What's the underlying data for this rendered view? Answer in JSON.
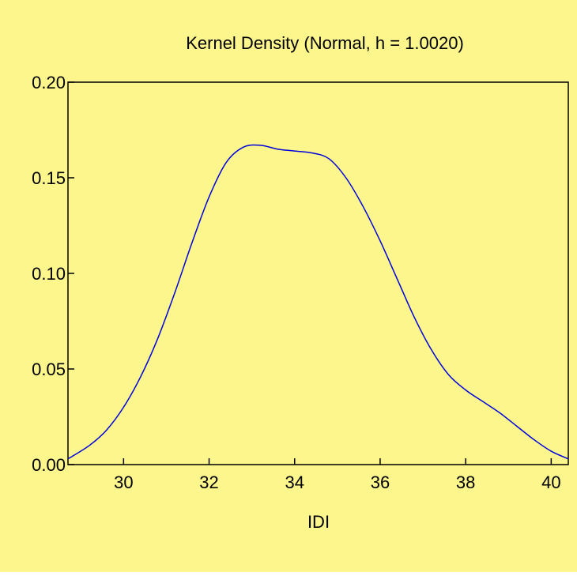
{
  "chart_data": {
    "type": "line",
    "title": "Kernel Density (Normal, h = 1.0020)",
    "xlabel": "IDI",
    "ylabel": "",
    "xlim": [
      28.7,
      40.4
    ],
    "ylim": [
      0,
      0.2
    ],
    "x_ticks": [
      30,
      32,
      34,
      36,
      38,
      40
    ],
    "x_tick_labels": [
      "30",
      "32",
      "34",
      "36",
      "38",
      "40"
    ],
    "y_ticks": [
      0,
      0.05,
      0.1,
      0.15,
      0.2
    ],
    "y_tick_labels": [
      "0.00",
      "0.05",
      "0.10",
      "0.15",
      "0.20"
    ],
    "grid": false,
    "legend": "none",
    "series": [
      {
        "color": "#0000dd",
        "x": [
          28.7,
          29.2,
          29.6,
          30.0,
          30.4,
          30.8,
          31.2,
          31.6,
          32.0,
          32.4,
          32.8,
          33.2,
          33.6,
          34.0,
          34.4,
          34.8,
          35.2,
          35.6,
          36.0,
          36.4,
          36.8,
          37.2,
          37.6,
          38.0,
          38.4,
          38.8,
          39.2,
          39.6,
          40.0,
          40.4
        ],
        "y": [
          0.003,
          0.01,
          0.018,
          0.03,
          0.046,
          0.066,
          0.09,
          0.116,
          0.14,
          0.158,
          0.166,
          0.167,
          0.165,
          0.164,
          0.163,
          0.16,
          0.15,
          0.135,
          0.117,
          0.097,
          0.077,
          0.06,
          0.047,
          0.039,
          0.033,
          0.027,
          0.02,
          0.013,
          0.007,
          0.003
        ]
      }
    ]
  },
  "colors": {
    "background": "#fcf68d",
    "plot_area": "#fcf68d",
    "axis": "#000000",
    "line": "#0000dd"
  }
}
